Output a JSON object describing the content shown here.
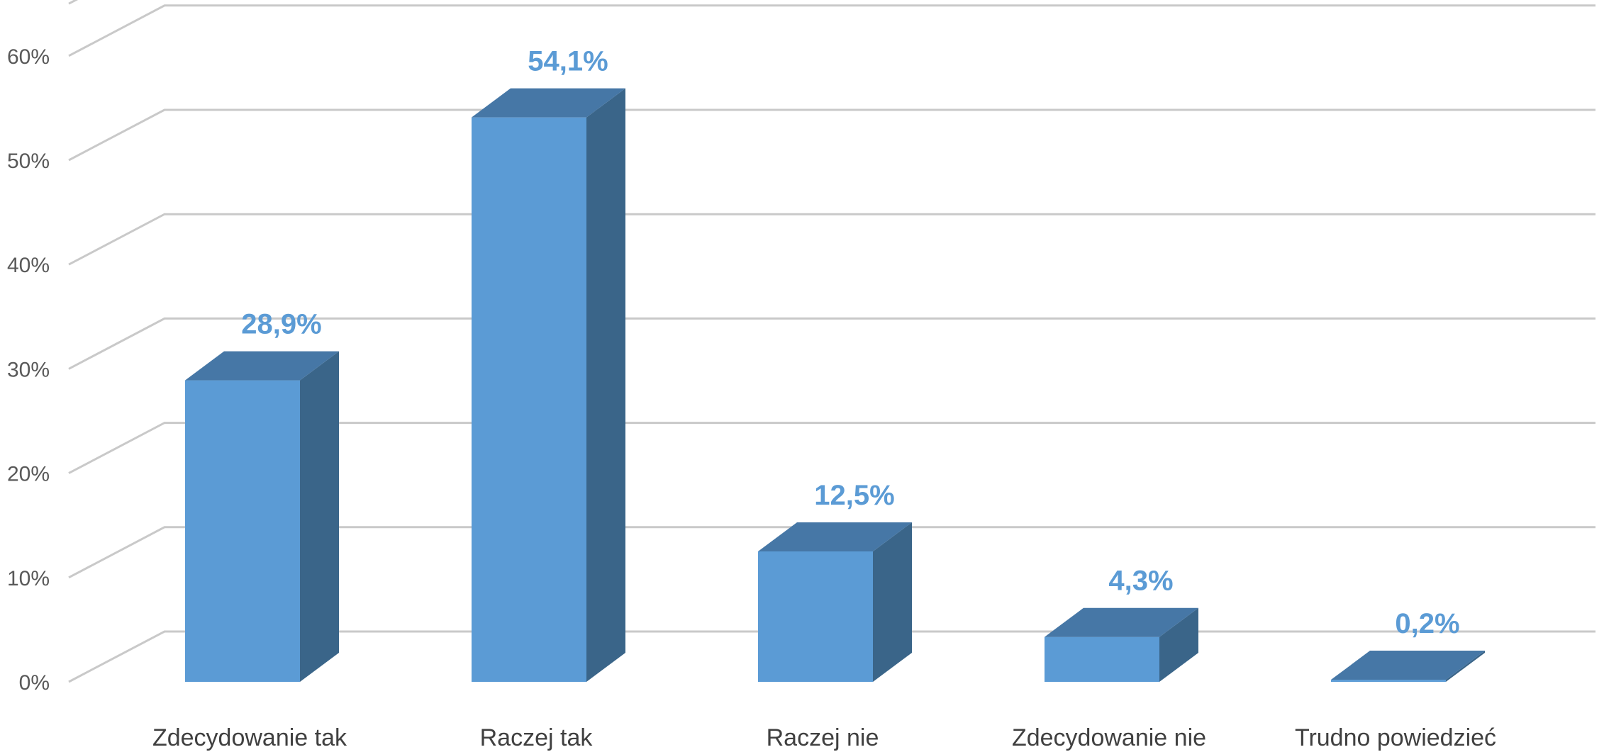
{
  "chart_data": {
    "type": "bar",
    "style": "3d-column",
    "categories": [
      "Zdecydowanie tak",
      "Raczej tak",
      "Raczej nie",
      "Zdecydowanie nie",
      "Trudno powiedzieć"
    ],
    "values": [
      28.9,
      54.1,
      12.5,
      4.3,
      0.2
    ],
    "data_labels": [
      "28,9%",
      "54,1%",
      "12,5%",
      "4,3%",
      "0,2%"
    ],
    "y_ticks": [
      0,
      10,
      20,
      30,
      40,
      50,
      60
    ],
    "y_tick_labels": [
      "0%",
      "10%",
      "20%",
      "30%",
      "40%",
      "50%",
      "60%"
    ],
    "ylim": [
      0,
      65
    ],
    "grid": true,
    "legend": "none",
    "title": "",
    "xlabel": "",
    "ylabel": "",
    "colors": {
      "bar_front": "#5b9bd5",
      "bar_top": "#4677a6",
      "bar_side": "#3a6589",
      "data_label": "#5b9bd5",
      "grid": "#c9c9c9"
    }
  }
}
